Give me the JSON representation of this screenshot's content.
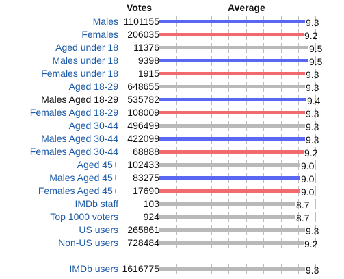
{
  "headers": {
    "votes": "Votes",
    "average": "Average"
  },
  "colors": {
    "male": "#5a67f2",
    "female": "#f26a6e",
    "all": "#b9b9b9",
    "link": "#1b5aa7"
  },
  "rows": [
    {
      "label": "Males",
      "votes": "1101155",
      "average": "9.3",
      "type": "male",
      "link": true
    },
    {
      "label": "Females",
      "votes": "206035",
      "average": "9.2",
      "type": "female",
      "link": true
    },
    {
      "label": "Aged under 18",
      "votes": "11376",
      "average": "9.5",
      "type": "all",
      "link": true
    },
    {
      "label": "Males under 18",
      "votes": "9398",
      "average": "9.5",
      "type": "male",
      "link": true
    },
    {
      "label": "Females under 18",
      "votes": "1915",
      "average": "9.3",
      "type": "female",
      "link": true
    },
    {
      "label": "Aged 18-29",
      "votes": "648655",
      "average": "9.3",
      "type": "all",
      "link": true
    },
    {
      "label": "Males Aged 18-29",
      "votes": "535782",
      "average": "9.4",
      "type": "male",
      "link": false
    },
    {
      "label": "Females Aged 18-29",
      "votes": "108009",
      "average": "9.3",
      "type": "female",
      "link": true
    },
    {
      "label": "Aged 30-44",
      "votes": "496499",
      "average": "9.3",
      "type": "all",
      "link": true
    },
    {
      "label": "Males Aged 30-44",
      "votes": "422099",
      "average": "9.3",
      "type": "male",
      "link": true
    },
    {
      "label": "Females Aged 30-44",
      "votes": "68888",
      "average": "9.2",
      "type": "female",
      "link": true
    },
    {
      "label": "Aged 45+",
      "votes": "102433",
      "average": "9.0",
      "type": "all",
      "link": true
    },
    {
      "label": "Males Aged 45+",
      "votes": "83275",
      "average": "9.0",
      "type": "male",
      "link": true
    },
    {
      "label": "Females Aged 45+",
      "votes": "17690",
      "average": "9.0",
      "type": "female",
      "link": true
    },
    {
      "label": "IMDb staff",
      "votes": "103",
      "average": "8.7",
      "type": "all",
      "link": true
    },
    {
      "label": "Top 1000 voters",
      "votes": "924",
      "average": "8.7",
      "type": "all",
      "link": true
    },
    {
      "label": "US users",
      "votes": "265861",
      "average": "9.3",
      "type": "all",
      "link": true
    },
    {
      "label": "Non-US users",
      "votes": "728484",
      "average": "9.2",
      "type": "all",
      "link": true
    }
  ],
  "total": {
    "label": "IMDb users",
    "votes": "1616775",
    "average": "9.3",
    "type": "all",
    "link": true
  }
}
